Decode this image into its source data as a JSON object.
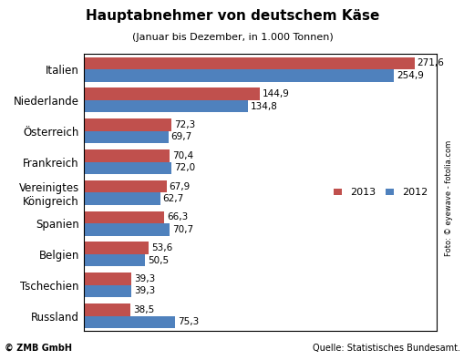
{
  "chart_data": {
    "type": "bar",
    "orientation": "horizontal",
    "title": "Hauptabnehmer von deutschem Käse",
    "subtitle": "(Januar bis Dezember, in 1.000 Tonnen)",
    "categories": [
      "Italien",
      "Niederlande",
      "Österreich",
      "Frankreich",
      "Vereinigtes Königreich",
      "Spanien",
      "Belgien",
      "Tschechien",
      "Russland"
    ],
    "series": [
      {
        "name": "2013",
        "color": "#c0504d",
        "values": [
          271.6,
          144.9,
          72.3,
          70.4,
          67.9,
          66.3,
          53.6,
          39.3,
          38.5
        ],
        "value_labels": [
          "271,6",
          "144,9",
          "72,3",
          "70,4",
          "67,9",
          "66,3",
          "53,6",
          "39,3",
          "38,5"
        ]
      },
      {
        "name": "2012",
        "color": "#4f81bd",
        "values": [
          254.9,
          134.8,
          69.7,
          72.0,
          62.7,
          70.7,
          50.5,
          39.3,
          75.3
        ],
        "value_labels": [
          "254,9",
          "134,8",
          "69,7",
          "72,0",
          "62,7",
          "70,7",
          "50,5",
          "39,3",
          "75,3"
        ]
      }
    ],
    "xlim": [
      0,
      290
    ],
    "xticks": [],
    "data_labels": true,
    "tick_labels": "y",
    "grid": false,
    "legend": "center right",
    "annotations": [
      "© ZMB GmbH",
      "Quelle: Statistisches Bundesamt.",
      "Foto: © eyewave - fotolia.com"
    ]
  }
}
